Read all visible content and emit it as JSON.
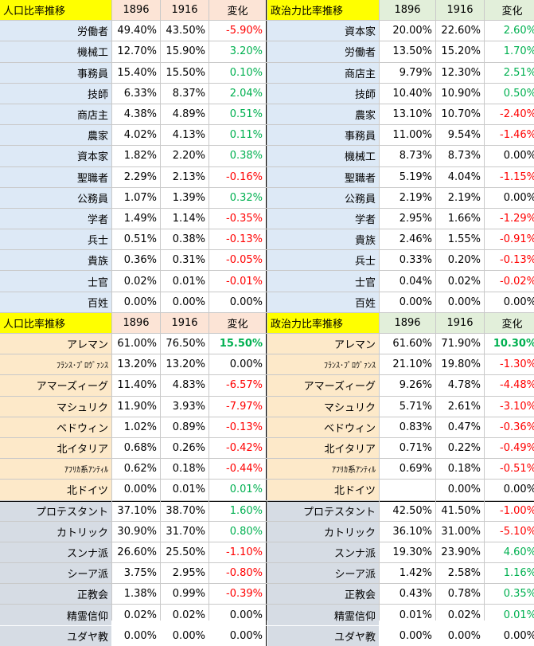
{
  "sections": [
    {
      "id": "occupation",
      "left_header": "人口比率推移",
      "right_header": "政治力比率推移",
      "col1": "1896",
      "col2": "1916",
      "col3": "変化",
      "left_rows": [
        [
          "労働者",
          "49.40%",
          "43.50%",
          "-5.90%"
        ],
        [
          "機械工",
          "12.70%",
          "15.90%",
          "3.20%"
        ],
        [
          "事務員",
          "15.40%",
          "15.50%",
          "0.10%"
        ],
        [
          "技師",
          "6.33%",
          "8.37%",
          "2.04%"
        ],
        [
          "商店主",
          "4.38%",
          "4.89%",
          "0.51%"
        ],
        [
          "農家",
          "4.02%",
          "4.13%",
          "0.11%"
        ],
        [
          "資本家",
          "1.82%",
          "2.20%",
          "0.38%"
        ],
        [
          "聖職者",
          "2.29%",
          "2.13%",
          "-0.16%"
        ],
        [
          "公務員",
          "1.07%",
          "1.39%",
          "0.32%"
        ],
        [
          "学者",
          "1.49%",
          "1.14%",
          "-0.35%"
        ],
        [
          "兵士",
          "0.51%",
          "0.38%",
          "-0.13%"
        ],
        [
          "貴族",
          "0.36%",
          "0.31%",
          "-0.05%"
        ],
        [
          "士官",
          "0.02%",
          "0.01%",
          "-0.01%"
        ],
        [
          "百姓",
          "0.00%",
          "0.00%",
          "0.00%"
        ]
      ],
      "right_rows": [
        [
          "資本家",
          "20.00%",
          "22.60%",
          "2.60%"
        ],
        [
          "労働者",
          "13.50%",
          "15.20%",
          "1.70%"
        ],
        [
          "商店主",
          "9.79%",
          "12.30%",
          "2.51%"
        ],
        [
          "技師",
          "10.40%",
          "10.90%",
          "0.50%"
        ],
        [
          "農家",
          "13.10%",
          "10.70%",
          "-2.40%"
        ],
        [
          "事務員",
          "11.00%",
          "9.54%",
          "-1.46%"
        ],
        [
          "機械工",
          "8.73%",
          "8.73%",
          "0.00%"
        ],
        [
          "聖職者",
          "5.19%",
          "4.04%",
          "-1.15%"
        ],
        [
          "公務員",
          "2.19%",
          "2.19%",
          "0.00%"
        ],
        [
          "学者",
          "2.95%",
          "1.66%",
          "-1.29%"
        ],
        [
          "貴族",
          "2.46%",
          "1.55%",
          "-0.91%"
        ],
        [
          "兵士",
          "0.33%",
          "0.20%",
          "-0.13%"
        ],
        [
          "士官",
          "0.04%",
          "0.02%",
          "-0.02%"
        ],
        [
          "百姓",
          "0.00%",
          "0.00%",
          "0.00%"
        ]
      ]
    },
    {
      "id": "culture",
      "left_header": "人口比率推移",
      "right_header": "政治力比率推移",
      "col1": "1896",
      "col2": "1916",
      "col3": "変化",
      "left_rows": [
        [
          "アレマン",
          "61.00%",
          "76.50%",
          "15.50%"
        ],
        [
          "ﾌﾗﾝｽ･ﾌﾟﾛｳﾞｧﾝｽ",
          "13.20%",
          "13.20%",
          "0.00%"
        ],
        [
          "アマーズィーグ",
          "11.40%",
          "4.83%",
          "-6.57%"
        ],
        [
          "マシュリク",
          "11.90%",
          "3.93%",
          "-7.97%"
        ],
        [
          "ベドウィン",
          "1.02%",
          "0.89%",
          "-0.13%"
        ],
        [
          "北イタリア",
          "0.68%",
          "0.26%",
          "-0.42%"
        ],
        [
          "ｱﾌﾘｶ系ｱﾝﾃｨﾙ",
          "0.62%",
          "0.18%",
          "-0.44%"
        ],
        [
          "北ドイツ",
          "0.00%",
          "0.01%",
          "0.01%"
        ]
      ],
      "right_rows": [
        [
          "アレマン",
          "61.60%",
          "71.90%",
          "10.30%"
        ],
        [
          "ﾌﾗﾝｽ･ﾌﾟﾛｳﾞｧﾝｽ",
          "21.10%",
          "19.80%",
          "-1.30%"
        ],
        [
          "アマーズィーグ",
          "9.26%",
          "4.78%",
          "-4.48%"
        ],
        [
          "マシュリク",
          "5.71%",
          "2.61%",
          "-3.10%"
        ],
        [
          "ベドウィン",
          "0.83%",
          "0.47%",
          "-0.36%"
        ],
        [
          "北イタリア",
          "0.71%",
          "0.22%",
          "-0.49%"
        ],
        [
          "ｱﾌﾘｶ系ｱﾝﾃｨﾙ",
          "0.69%",
          "0.18%",
          "-0.51%"
        ],
        [
          "北ドイツ",
          "",
          "0.00%",
          "0.00%"
        ]
      ]
    },
    {
      "id": "religion",
      "left_rows": [
        [
          "プロテスタント",
          "37.10%",
          "38.70%",
          "1.60%"
        ],
        [
          "カトリック",
          "30.90%",
          "31.70%",
          "0.80%"
        ],
        [
          "スンナ派",
          "26.60%",
          "25.50%",
          "-1.10%"
        ],
        [
          "シーア派",
          "3.75%",
          "2.95%",
          "-0.80%"
        ],
        [
          "正教会",
          "1.38%",
          "0.99%",
          "-0.39%"
        ],
        [
          "精霊信仰",
          "0.02%",
          "0.02%",
          "0.00%"
        ],
        [
          "ユダヤ教",
          "0.00%",
          "0.00%",
          "0.00%"
        ]
      ],
      "right_rows": [
        [
          "プロテスタント",
          "42.50%",
          "41.50%",
          "-1.00%"
        ],
        [
          "カトリック",
          "36.10%",
          "31.00%",
          "-5.10%"
        ],
        [
          "スンナ派",
          "19.30%",
          "23.90%",
          "4.60%"
        ],
        [
          "シーア派",
          "1.42%",
          "2.58%",
          "1.16%"
        ],
        [
          "正教会",
          "0.43%",
          "0.78%",
          "0.35%"
        ],
        [
          "精霊信仰",
          "0.01%",
          "0.02%",
          "0.01%"
        ],
        [
          "ユダヤ教",
          "0.00%",
          "0.00%",
          "0.00%"
        ]
      ]
    }
  ],
  "colors": {
    "header_yellow": "#ffff00",
    "header_pink": "#fce4d6",
    "header_green": "#e2efda",
    "occupation_label": "#dde9f6",
    "culture_label": "#fde9c9",
    "religion_label": "#d6dce4",
    "positive": "#00b050",
    "negative": "#ff0000"
  }
}
